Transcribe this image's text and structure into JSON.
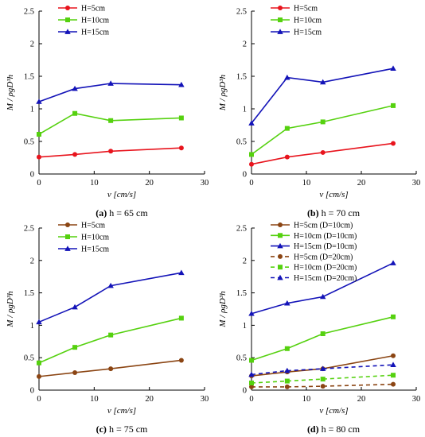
{
  "chart_data": [
    {
      "type": "line",
      "caption_label": "(a)",
      "caption_text": "h = 65 cm",
      "xlabel": "v [cm/s]",
      "ylabel": "M / ρgD³h",
      "xlim": [
        0,
        30
      ],
      "ylim": [
        0,
        2.5
      ],
      "xticks": [
        "0",
        "10",
        "20",
        "30"
      ],
      "yticks": [
        "0",
        "0.5",
        "1",
        "1.5",
        "2",
        "2.5"
      ],
      "legend_position": "top-left",
      "grid": false,
      "series": [
        {
          "name": "H=5cm",
          "color": "#e8141d",
          "marker": "circle",
          "style": "solid",
          "x": [
            0,
            6.5,
            13,
            25.8
          ],
          "y": [
            0.26,
            0.3,
            0.35,
            0.4
          ]
        },
        {
          "name": "H=10cm",
          "color": "#55d10f",
          "marker": "square",
          "style": "solid",
          "x": [
            0,
            6.5,
            13,
            25.8
          ],
          "y": [
            0.61,
            0.93,
            0.82,
            0.86
          ]
        },
        {
          "name": "H=15cm",
          "color": "#1313b8",
          "marker": "triangle",
          "style": "solid",
          "x": [
            0,
            6.5,
            13,
            25.8
          ],
          "y": [
            1.11,
            1.31,
            1.39,
            1.37
          ]
        }
      ]
    },
    {
      "type": "line",
      "caption_label": "(b)",
      "caption_text": "h = 70 cm",
      "xlabel": "v [cm/s]",
      "ylabel": "M / ρgD³h",
      "xlim": [
        0,
        30
      ],
      "ylim": [
        0,
        2.5
      ],
      "xticks": [
        "0",
        "10",
        "20",
        "30"
      ],
      "yticks": [
        "0",
        "0.5",
        "1",
        "1.5",
        "2",
        "2.5"
      ],
      "legend_position": "top-left",
      "grid": false,
      "series": [
        {
          "name": "H=5cm",
          "color": "#e8141d",
          "marker": "circle",
          "style": "solid",
          "x": [
            0,
            6.5,
            13,
            25.8
          ],
          "y": [
            0.15,
            0.26,
            0.33,
            0.47
          ]
        },
        {
          "name": "H=10cm",
          "color": "#55d10f",
          "marker": "square",
          "style": "solid",
          "x": [
            0,
            6.5,
            13,
            25.8
          ],
          "y": [
            0.3,
            0.7,
            0.8,
            1.05
          ]
        },
        {
          "name": "H=15cm",
          "color": "#1313b8",
          "marker": "triangle",
          "style": "solid",
          "x": [
            0,
            6.5,
            13,
            25.8
          ],
          "y": [
            0.78,
            1.48,
            1.41,
            1.62
          ]
        }
      ]
    },
    {
      "type": "line",
      "caption_label": "(c)",
      "caption_text": "h = 75 cm",
      "xlabel": "v [cm/s]",
      "ylabel": "M / ρgD³h",
      "xlim": [
        0,
        30
      ],
      "ylim": [
        0,
        2.5
      ],
      "xticks": [
        "0",
        "10",
        "20",
        "30"
      ],
      "yticks": [
        "0",
        "0.5",
        "1",
        "1.5",
        "2",
        "2.5"
      ],
      "legend_position": "top-left",
      "grid": false,
      "series": [
        {
          "name": "H=5cm",
          "color": "#8b4513",
          "marker": "circle",
          "style": "solid",
          "x": [
            0,
            6.5,
            13,
            25.8
          ],
          "y": [
            0.21,
            0.27,
            0.33,
            0.46
          ]
        },
        {
          "name": "H=10cm",
          "color": "#55d10f",
          "marker": "square",
          "style": "solid",
          "x": [
            0,
            6.5,
            13,
            25.8
          ],
          "y": [
            0.42,
            0.66,
            0.85,
            1.11
          ]
        },
        {
          "name": "H=15cm",
          "color": "#1313b8",
          "marker": "triangle",
          "style": "solid",
          "x": [
            0,
            6.5,
            13,
            25.8
          ],
          "y": [
            1.05,
            1.28,
            1.61,
            1.81
          ]
        }
      ]
    },
    {
      "type": "line",
      "caption_label": "(d)",
      "caption_text": "h = 80 cm",
      "xlabel": "v [cm/s]",
      "ylabel": "M / ρgD³h",
      "xlim": [
        0,
        30
      ],
      "ylim": [
        0,
        2.5
      ],
      "xticks": [
        "0",
        "10",
        "20",
        "30"
      ],
      "yticks": [
        "0",
        "0.5",
        "1",
        "1.5",
        "2",
        "2.5"
      ],
      "legend_position": "top-left",
      "grid": false,
      "series": [
        {
          "name": "H=5cm (D=10cm)",
          "color": "#8b4513",
          "marker": "circle",
          "style": "solid",
          "x": [
            0,
            6.5,
            13,
            25.8
          ],
          "y": [
            0.22,
            0.28,
            0.33,
            0.53
          ]
        },
        {
          "name": "H=10cm (D=10cm)",
          "color": "#55d10f",
          "marker": "square",
          "style": "solid",
          "x": [
            0,
            6.5,
            13,
            25.8
          ],
          "y": [
            0.46,
            0.64,
            0.87,
            1.13
          ]
        },
        {
          "name": "H=15cm (D=10cm)",
          "color": "#1313b8",
          "marker": "triangle",
          "style": "solid",
          "x": [
            0,
            6.5,
            13,
            25.8
          ],
          "y": [
            1.18,
            1.34,
            1.44,
            1.96
          ]
        },
        {
          "name": "H=5cm (D=20cm)",
          "color": "#8b4513",
          "marker": "circle",
          "style": "dashed",
          "x": [
            0,
            6.5,
            13,
            25.8
          ],
          "y": [
            0.05,
            0.05,
            0.06,
            0.09
          ]
        },
        {
          "name": "H=10cm (D=20cm)",
          "color": "#55d10f",
          "marker": "square",
          "style": "dashed",
          "x": [
            0,
            6.5,
            13,
            25.8
          ],
          "y": [
            0.11,
            0.14,
            0.17,
            0.23
          ]
        },
        {
          "name": "H=15cm (D=20cm)",
          "color": "#1313b8",
          "marker": "triangle",
          "style": "dashed",
          "x": [
            0,
            6.5,
            13,
            25.8
          ],
          "y": [
            0.24,
            0.3,
            0.33,
            0.39
          ]
        }
      ]
    }
  ]
}
